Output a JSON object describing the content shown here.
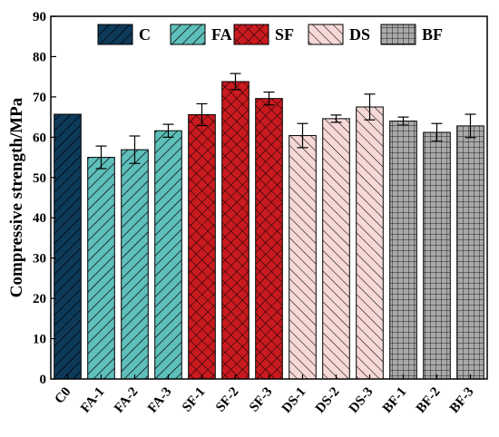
{
  "chart_data": {
    "type": "bar",
    "ylabel": "Compressive strength/MPa",
    "xlabel": "",
    "ylim": [
      0,
      90
    ],
    "yticks": [
      0,
      10,
      20,
      30,
      40,
      50,
      60,
      70,
      80,
      90
    ],
    "grid": false,
    "legend_position": "top",
    "categories": [
      "C0",
      "FA-1",
      "FA-2",
      "FA-3",
      "SF-1",
      "SF-2",
      "SF-3",
      "DS-1",
      "DS-2",
      "DS-3",
      "BF-1",
      "BF-2",
      "BF-3"
    ],
    "values": [
      65.7,
      55.0,
      56.9,
      61.6,
      65.6,
      73.8,
      69.6,
      60.4,
      64.6,
      67.5,
      64.0,
      61.2,
      62.8
    ],
    "errors": [
      null,
      2.8,
      3.4,
      1.6,
      2.7,
      2.0,
      1.6,
      3.0,
      0.9,
      3.2,
      1.0,
      2.2,
      2.9
    ],
    "groups": [
      "C",
      "FA",
      "FA",
      "FA",
      "SF",
      "SF",
      "SF",
      "DS",
      "DS",
      "DS",
      "BF",
      "BF",
      "BF"
    ],
    "legend": [
      {
        "key": "C",
        "label": "C",
        "color": "#0e3a5a",
        "pattern": "diag-left"
      },
      {
        "key": "FA",
        "label": "FA",
        "color": "#5fbfba",
        "pattern": "diag-left"
      },
      {
        "key": "SF",
        "label": "SF",
        "color": "#c91a1f",
        "pattern": "cross-diag"
      },
      {
        "key": "DS",
        "label": "DS",
        "color": "#f6d9d6",
        "pattern": "diag-right"
      },
      {
        "key": "BF",
        "label": "BF",
        "color": "#a9a9a9",
        "pattern": "grid"
      }
    ]
  }
}
